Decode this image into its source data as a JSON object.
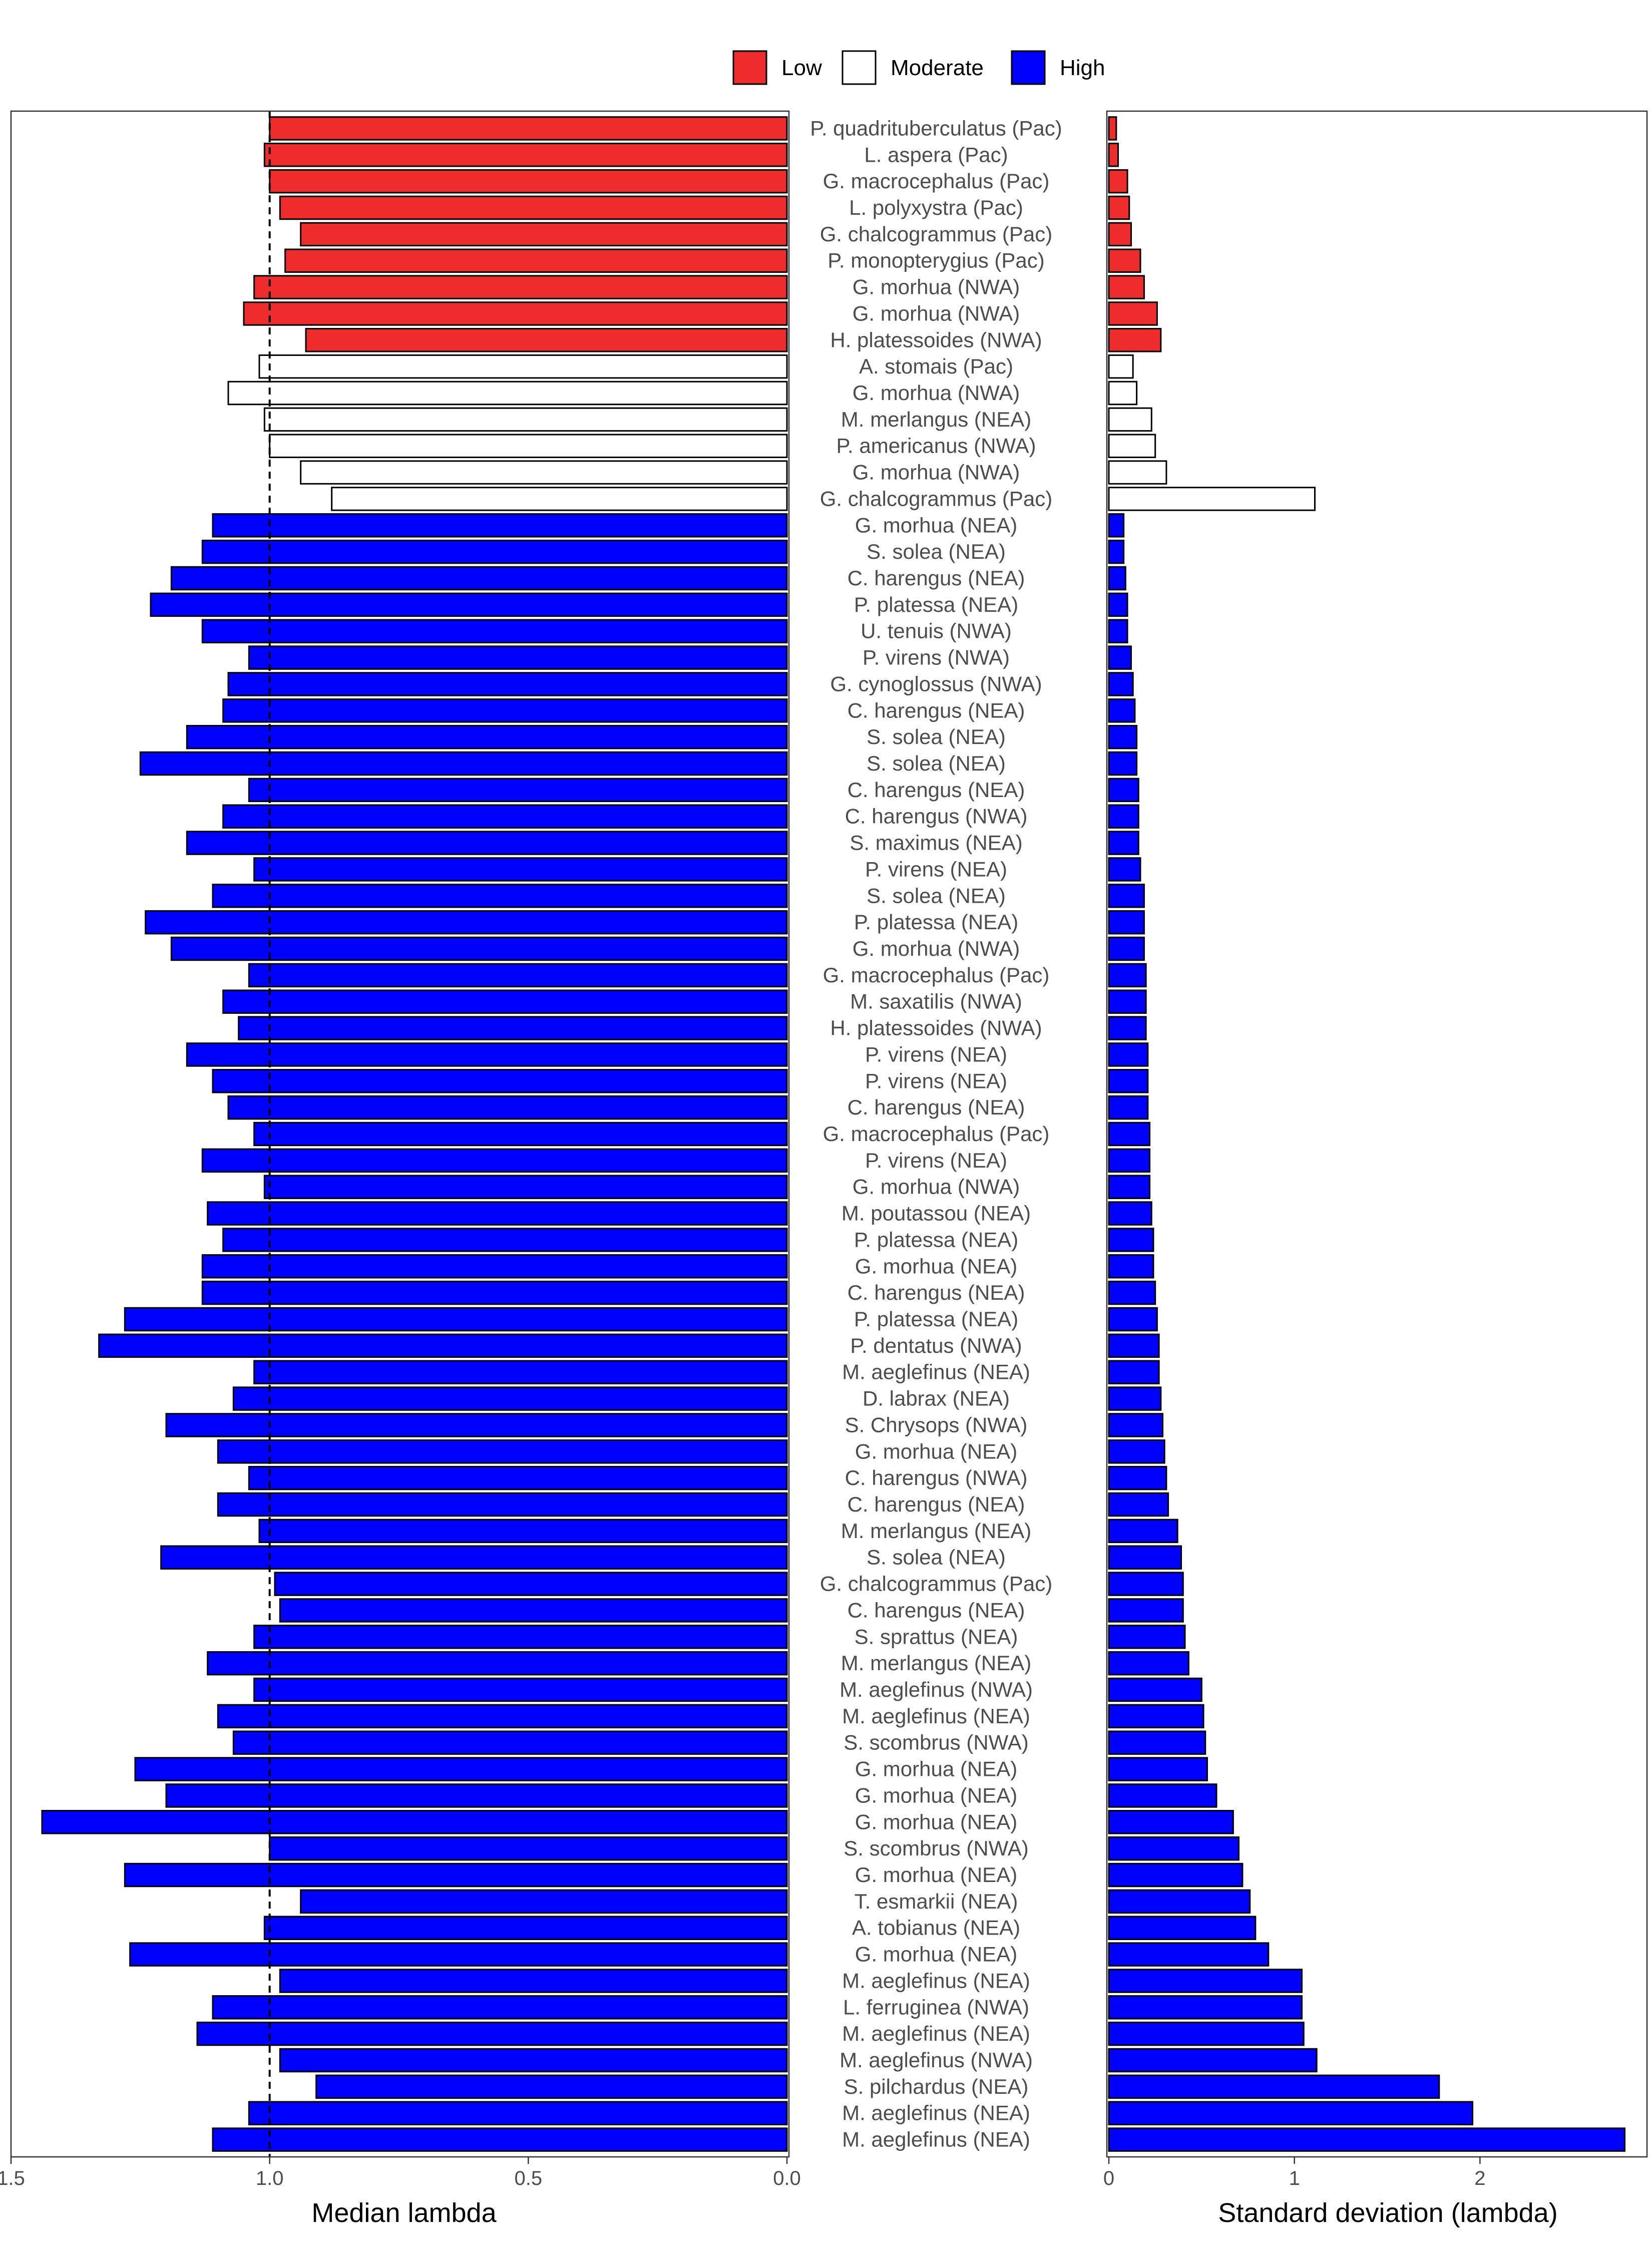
{
  "legend": {
    "items": [
      {
        "label": "Low",
        "color": "#EE2C2C"
      },
      {
        "label": "Moderate",
        "color": "#FFFFFF"
      },
      {
        "label": "High",
        "color": "#0000FF"
      }
    ]
  },
  "chart_data": [
    {
      "type": "bar",
      "orientation": "horizontal",
      "xlabel": "Median lambda",
      "x_reversed": true,
      "xlim": [
        1.5,
        0.0
      ],
      "xticks": [
        "1.5",
        "1.0",
        "0.5",
        "0.0"
      ],
      "reference_line": 1.0,
      "grid": false
    },
    {
      "type": "bar",
      "orientation": "horizontal",
      "xlabel": "Standard deviation (lambda)",
      "xlim": [
        0,
        2.9
      ],
      "xticks": [
        "0",
        "1",
        "2"
      ],
      "grid": false
    }
  ],
  "rows": [
    {
      "label": "P. quadrituberculatus (Pac)",
      "group": "Low",
      "median": 1.0,
      "sd": 0.04
    },
    {
      "label": "L. aspera (Pac)",
      "group": "Low",
      "median": 1.01,
      "sd": 0.05
    },
    {
      "label": "G. macrocephalus (Pac)",
      "group": "Low",
      "median": 1.0,
      "sd": 0.1
    },
    {
      "label": "L. polyxystra (Pac)",
      "group": "Low",
      "median": 0.98,
      "sd": 0.11
    },
    {
      "label": "G. chalcogrammus (Pac)",
      "group": "Low",
      "median": 0.94,
      "sd": 0.12
    },
    {
      "label": "P. monopterygius (Pac)",
      "group": "Low",
      "median": 0.97,
      "sd": 0.17
    },
    {
      "label": "G. morhua (NWA)",
      "group": "Low",
      "median": 1.03,
      "sd": 0.19
    },
    {
      "label": "G. morhua (NWA)",
      "group": "Low",
      "median": 1.05,
      "sd": 0.26
    },
    {
      "label": "H. platessoides (NWA)",
      "group": "Low",
      "median": 0.93,
      "sd": 0.28
    },
    {
      "label": "A. stomais (Pac)",
      "group": "Moderate",
      "median": 1.02,
      "sd": 0.13
    },
    {
      "label": "G. morhua (NWA)",
      "group": "Moderate",
      "median": 1.08,
      "sd": 0.15
    },
    {
      "label": "M. merlangus (NEA)",
      "group": "Moderate",
      "median": 1.01,
      "sd": 0.23
    },
    {
      "label": "P. americanus (NWA)",
      "group": "Moderate",
      "median": 1.0,
      "sd": 0.25
    },
    {
      "label": "G. morhua (NWA)",
      "group": "Moderate",
      "median": 0.94,
      "sd": 0.31
    },
    {
      "label": "G. chalcogrammus (Pac)",
      "group": "Moderate",
      "median": 0.88,
      "sd": 1.11
    },
    {
      "label": "G. morhua (NEA)",
      "group": "High",
      "median": 1.11,
      "sd": 0.08
    },
    {
      "label": "S. solea (NEA)",
      "group": "High",
      "median": 1.13,
      "sd": 0.08
    },
    {
      "label": "C. harengus (NEA)",
      "group": "High",
      "median": 1.19,
      "sd": 0.09
    },
    {
      "label": "P. platessa (NEA)",
      "group": "High",
      "median": 1.23,
      "sd": 0.1
    },
    {
      "label": "U. tenuis (NWA)",
      "group": "High",
      "median": 1.13,
      "sd": 0.1
    },
    {
      "label": "P. virens (NWA)",
      "group": "High",
      "median": 1.04,
      "sd": 0.12
    },
    {
      "label": "G. cynoglossus (NWA)",
      "group": "High",
      "median": 1.08,
      "sd": 0.13
    },
    {
      "label": "C. harengus (NEA)",
      "group": "High",
      "median": 1.09,
      "sd": 0.14
    },
    {
      "label": "S. solea (NEA)",
      "group": "High",
      "median": 1.16,
      "sd": 0.15
    },
    {
      "label": "S. solea (NEA)",
      "group": "High",
      "median": 1.25,
      "sd": 0.15
    },
    {
      "label": "C. harengus (NEA)",
      "group": "High",
      "median": 1.04,
      "sd": 0.16
    },
    {
      "label": "C. harengus (NWA)",
      "group": "High",
      "median": 1.09,
      "sd": 0.16
    },
    {
      "label": "S. maximus (NEA)",
      "group": "High",
      "median": 1.16,
      "sd": 0.16
    },
    {
      "label": "P. virens (NEA)",
      "group": "High",
      "median": 1.03,
      "sd": 0.17
    },
    {
      "label": "S. solea (NEA)",
      "group": "High",
      "median": 1.11,
      "sd": 0.19
    },
    {
      "label": "P. platessa (NEA)",
      "group": "High",
      "median": 1.24,
      "sd": 0.19
    },
    {
      "label": "G. morhua (NWA)",
      "group": "High",
      "median": 1.19,
      "sd": 0.19
    },
    {
      "label": "G. macrocephalus (Pac)",
      "group": "High",
      "median": 1.04,
      "sd": 0.2
    },
    {
      "label": "M. saxatilis (NWA)",
      "group": "High",
      "median": 1.09,
      "sd": 0.2
    },
    {
      "label": "H. platessoides (NWA)",
      "group": "High",
      "median": 1.06,
      "sd": 0.2
    },
    {
      "label": "P. virens (NEA)",
      "group": "High",
      "median": 1.16,
      "sd": 0.21
    },
    {
      "label": "P. virens (NEA)",
      "group": "High",
      "median": 1.11,
      "sd": 0.21
    },
    {
      "label": "C. harengus (NEA)",
      "group": "High",
      "median": 1.08,
      "sd": 0.21
    },
    {
      "label": "G. macrocephalus (Pac)",
      "group": "High",
      "median": 1.03,
      "sd": 0.22
    },
    {
      "label": "P. virens (NEA)",
      "group": "High",
      "median": 1.13,
      "sd": 0.22
    },
    {
      "label": "G. morhua (NWA)",
      "group": "High",
      "median": 1.01,
      "sd": 0.22
    },
    {
      "label": "M. poutassou (NEA)",
      "group": "High",
      "median": 1.12,
      "sd": 0.23
    },
    {
      "label": "P. platessa (NEA)",
      "group": "High",
      "median": 1.09,
      "sd": 0.24
    },
    {
      "label": "G. morhua (NEA)",
      "group": "High",
      "median": 1.13,
      "sd": 0.24
    },
    {
      "label": "C. harengus (NEA)",
      "group": "High",
      "median": 1.13,
      "sd": 0.25
    },
    {
      "label": "P. platessa (NEA)",
      "group": "High",
      "median": 1.28,
      "sd": 0.26
    },
    {
      "label": "P. dentatus (NWA)",
      "group": "High",
      "median": 1.33,
      "sd": 0.27
    },
    {
      "label": "M. aeglefinus (NEA)",
      "group": "High",
      "median": 1.03,
      "sd": 0.27
    },
    {
      "label": "D. labrax (NEA)",
      "group": "High",
      "median": 1.07,
      "sd": 0.28
    },
    {
      "label": "S. Chrysops (NWA)",
      "group": "High",
      "median": 1.2,
      "sd": 0.29
    },
    {
      "label": "G. morhua (NEA)",
      "group": "High",
      "median": 1.1,
      "sd": 0.3
    },
    {
      "label": "C. harengus (NWA)",
      "group": "High",
      "median": 1.04,
      "sd": 0.31
    },
    {
      "label": "C. harengus (NEA)",
      "group": "High",
      "median": 1.1,
      "sd": 0.32
    },
    {
      "label": "M. merlangus (NEA)",
      "group": "High",
      "median": 1.02,
      "sd": 0.37
    },
    {
      "label": "S. solea (NEA)",
      "group": "High",
      "median": 1.21,
      "sd": 0.39
    },
    {
      "label": "G. chalcogrammus (Pac)",
      "group": "High",
      "median": 0.99,
      "sd": 0.4
    },
    {
      "label": "C. harengus (NEA)",
      "group": "High",
      "median": 0.98,
      "sd": 0.4
    },
    {
      "label": "S. sprattus (NEA)",
      "group": "High",
      "median": 1.03,
      "sd": 0.41
    },
    {
      "label": "M. merlangus (NEA)",
      "group": "High",
      "median": 1.12,
      "sd": 0.43
    },
    {
      "label": "M. aeglefinus (NWA)",
      "group": "High",
      "median": 1.03,
      "sd": 0.5
    },
    {
      "label": "M. aeglefinus (NEA)",
      "group": "High",
      "median": 1.1,
      "sd": 0.51
    },
    {
      "label": "S. scombrus (NWA)",
      "group": "High",
      "median": 1.07,
      "sd": 0.52
    },
    {
      "label": "G. morhua (NEA)",
      "group": "High",
      "median": 1.26,
      "sd": 0.53
    },
    {
      "label": "G. morhua (NEA)",
      "group": "High",
      "median": 1.2,
      "sd": 0.58
    },
    {
      "label": "G. morhua (NEA)",
      "group": "High",
      "median": 1.44,
      "sd": 0.67
    },
    {
      "label": "S. scombrus (NWA)",
      "group": "High",
      "median": 1.0,
      "sd": 0.7
    },
    {
      "label": "G. morhua (NEA)",
      "group": "High",
      "median": 1.28,
      "sd": 0.72
    },
    {
      "label": "T. esmarkii (NEA)",
      "group": "High",
      "median": 0.94,
      "sd": 0.76
    },
    {
      "label": "A. tobianus (NEA)",
      "group": "High",
      "median": 1.01,
      "sd": 0.79
    },
    {
      "label": "G. morhua (NEA)",
      "group": "High",
      "median": 1.27,
      "sd": 0.86
    },
    {
      "label": "M. aeglefinus (NEA)",
      "group": "High",
      "median": 0.98,
      "sd": 1.04
    },
    {
      "label": "L. ferruginea (NWA)",
      "group": "High",
      "median": 1.11,
      "sd": 1.04
    },
    {
      "label": "M. aeglefinus (NEA)",
      "group": "High",
      "median": 1.14,
      "sd": 1.05
    },
    {
      "label": "M. aeglefinus (NWA)",
      "group": "High",
      "median": 0.98,
      "sd": 1.12
    },
    {
      "label": "S. pilchardus (NEA)",
      "group": "High",
      "median": 0.91,
      "sd": 1.78
    },
    {
      "label": "M. aeglefinus (NEA)",
      "group": "High",
      "median": 1.04,
      "sd": 1.96
    },
    {
      "label": "M. aeglefinus (NEA)",
      "group": "High",
      "median": 1.11,
      "sd": 2.78
    }
  ]
}
